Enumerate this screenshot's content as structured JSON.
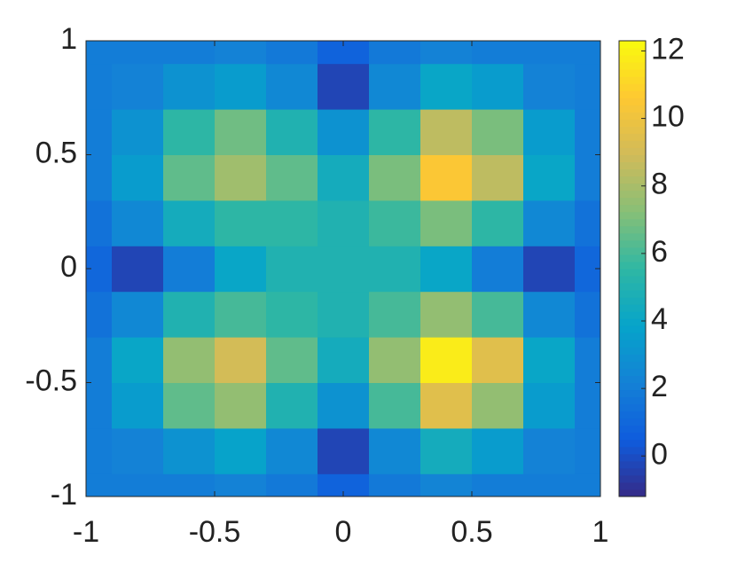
{
  "chart_data": {
    "type": "heatmap",
    "x": [
      -1,
      -0.8,
      -0.6,
      -0.4,
      -0.2,
      0,
      0.2,
      0.4,
      0.6,
      0.8,
      1
    ],
    "y": [
      -1,
      -0.8,
      -0.6,
      -0.4,
      -0.2,
      0,
      0.2,
      0.4,
      0.6,
      0.8,
      1
    ],
    "z": [
      [
        2,
        2,
        2,
        2.2,
        1.8,
        0.8,
        1.8,
        2.3,
        2,
        2,
        2
      ],
      [
        2,
        2.2,
        3,
        3.8,
        2.5,
        -0.3,
        2.5,
        4.5,
        3.5,
        2.2,
        2
      ],
      [
        2,
        3.5,
        6.5,
        7.5,
        5,
        3,
        6,
        9.5,
        7.5,
        3.5,
        2
      ],
      [
        2,
        4,
        7.5,
        9,
        6.5,
        4.5,
        7.5,
        11.8,
        9.5,
        4,
        2
      ],
      [
        1.5,
        2.5,
        5,
        6,
        5.5,
        5,
        6,
        7.5,
        6,
        2.5,
        1.5
      ],
      [
        1,
        -0.3,
        2,
        4,
        5,
        5,
        5,
        4,
        2,
        -0.3,
        1
      ],
      [
        1.5,
        2.5,
        4.5,
        5.5,
        5.5,
        5,
        5.8,
        7,
        5.5,
        2.5,
        1.5
      ],
      [
        2,
        3.5,
        6.5,
        7.8,
        6.5,
        4.5,
        7,
        10.5,
        8.5,
        4,
        2
      ],
      [
        2,
        3,
        5.5,
        6.8,
        5,
        3,
        5.5,
        8.5,
        7,
        3.5,
        2
      ],
      [
        2,
        2.2,
        3,
        3.5,
        2.5,
        -0.3,
        2.5,
        4,
        3.5,
        2.2,
        2
      ],
      [
        2,
        2,
        2,
        2.2,
        1.8,
        0.8,
        1.8,
        2.2,
        2,
        2,
        2
      ]
    ],
    "xlim": [
      -1,
      1
    ],
    "ylim": [
      -1,
      1
    ],
    "xticks": [
      -1,
      -0.5,
      0,
      0.5,
      1
    ],
    "yticks": [
      -1,
      -0.5,
      0,
      0.5,
      1
    ],
    "clim": [
      -1.2,
      12.3
    ],
    "cticks": [
      0,
      2,
      4,
      6,
      8,
      10,
      12
    ],
    "colormap": [
      "#352a87",
      "#0f5cdd",
      "#1481d6",
      "#06a4ca",
      "#2eb7a4",
      "#87bf77",
      "#d1bb59",
      "#fec832",
      "#f9fb0e"
    ]
  }
}
